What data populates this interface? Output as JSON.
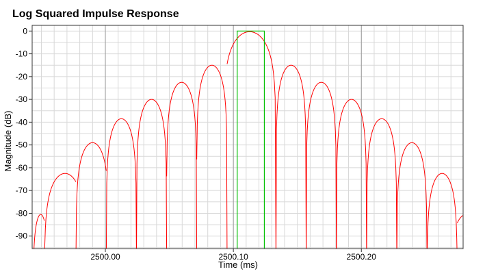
{
  "chart_data": {
    "type": "line",
    "title": "Log Squared Impulse Response",
    "xlabel": "Time (ms)",
    "ylabel": "Magnitude (dB)",
    "xlim": [
      2499.9428,
      2500.2795
    ],
    "ylim": [
      -95.5,
      2.5
    ],
    "x_ticks": [
      {
        "value": 2500.0,
        "label": "2500.00"
      },
      {
        "value": 2500.1,
        "label": "2500.10"
      },
      {
        "value": 2500.2,
        "label": "2500.20"
      }
    ],
    "x_minor_step": 0.01,
    "y_ticks": [
      {
        "value": 0,
        "label": "0"
      },
      {
        "value": -10,
        "label": "-10"
      },
      {
        "value": -20,
        "label": "-20"
      },
      {
        "value": -30,
        "label": "-30"
      },
      {
        "value": -40,
        "label": "-40"
      },
      {
        "value": -50,
        "label": "-50"
      },
      {
        "value": -60,
        "label": "-60"
      },
      {
        "value": -70,
        "label": "-70"
      },
      {
        "value": -80,
        "label": "-80"
      },
      {
        "value": -90,
        "label": "-90"
      }
    ],
    "y_minor_step": 5,
    "grid": true,
    "legend": "none",
    "colors": {
      "response": "#ff0000",
      "window": "#00c000",
      "grid_minor": "#d8d8d8",
      "grid_major": "#999999"
    },
    "series": [
      {
        "style": "lobes",
        "color": "#ff0000",
        "lobes": [
          {
            "x_start": 2499.9434,
            "x_end": 2499.9523,
            "peak_x": 2499.9495,
            "peak_y": -80.5
          },
          {
            "x_start": 2499.9523,
            "x_end": 2499.977,
            "peak_x": 2499.9685,
            "peak_y": -62.5
          },
          {
            "x_start": 2499.977,
            "x_end": 2500.0007,
            "peak_x": 2499.99,
            "peak_y": -49.0
          },
          {
            "x_start": 2500.0007,
            "x_end": 2500.0243,
            "peak_x": 2500.0125,
            "peak_y": -38.5
          },
          {
            "x_start": 2500.0243,
            "x_end": 2500.0479,
            "peak_x": 2500.0361,
            "peak_y": -30.0
          },
          {
            "x_start": 2500.0479,
            "x_end": 2500.0714,
            "peak_x": 2500.0596,
            "peak_y": -22.5
          },
          {
            "x_start": 2500.0714,
            "x_end": 2500.0951,
            "peak_x": 2500.0832,
            "peak_y": -15.0
          },
          {
            "x_start": 2500.0951,
            "x_end": 2500.1333,
            "peak_x": 2500.1127,
            "peak_y": -0.3
          },
          {
            "x_start": 2500.1333,
            "x_end": 2500.1569,
            "peak_x": 2500.1451,
            "peak_y": -15.0
          },
          {
            "x_start": 2500.1569,
            "x_end": 2500.1805,
            "peak_x": 2500.1687,
            "peak_y": -22.5
          },
          {
            "x_start": 2500.1805,
            "x_end": 2500.2041,
            "peak_x": 2500.1923,
            "peak_y": -30.0
          },
          {
            "x_start": 2500.2041,
            "x_end": 2500.2277,
            "peak_x": 2500.2159,
            "peak_y": -38.5
          },
          {
            "x_start": 2500.2277,
            "x_end": 2500.2513,
            "peak_x": 2500.2395,
            "peak_y": -49.0
          },
          {
            "x_start": 2500.2513,
            "x_end": 2500.2749,
            "peak_x": 2500.2631,
            "peak_y": -62.5
          },
          {
            "x_start": 2500.2749,
            "x_end": 2500.2954,
            "peak_x": 2500.282,
            "peak_y": -80.5
          }
        ]
      },
      {
        "style": "window",
        "color": "#00c000",
        "points": [
          {
            "x": 2500.103,
            "y": -95.5
          },
          {
            "x": 2500.103,
            "y": 0
          },
          {
            "x": 2500.1242,
            "y": 0
          },
          {
            "x": 2500.1242,
            "y": -95.5
          }
        ]
      }
    ]
  }
}
